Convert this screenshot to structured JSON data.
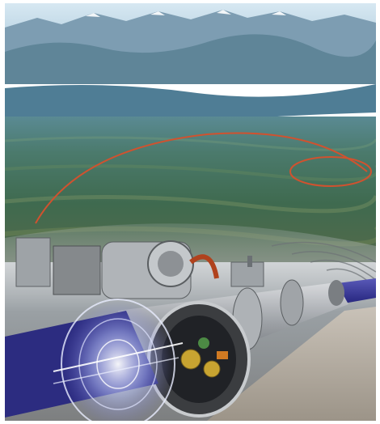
{
  "image": {
    "subject": "accelerator",
    "palette": {
      "sky": "#bcd6e6",
      "mountains": "#6f93a8",
      "lake": "#4f7d95",
      "land": "#3f6a58",
      "ring": "#d0522f",
      "tunnel": "#8a8e92",
      "pipe": "#3a3a8c",
      "steel": "#a9adb2"
    }
  }
}
